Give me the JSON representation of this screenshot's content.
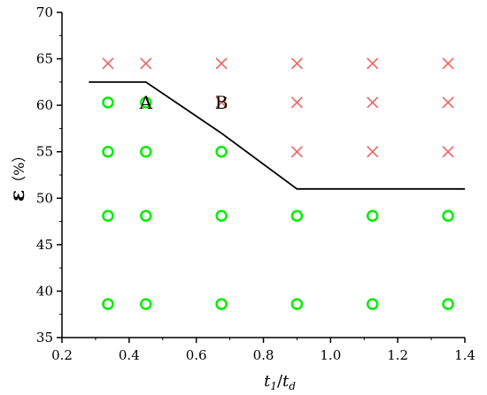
{
  "chart_data": {
    "type": "scatter",
    "xlim": [
      0.2,
      1.4
    ],
    "ylim": [
      35,
      70
    ],
    "x_ticks": [
      "0.2",
      "0.4",
      "0.6",
      "0.8",
      "1.0",
      "1.2",
      "1.4"
    ],
    "x_tick_values": [
      0.2,
      0.4,
      0.6,
      0.8,
      1.0,
      1.2,
      1.4
    ],
    "y_ticks": [
      "35",
      "40",
      "45",
      "50",
      "55",
      "60",
      "65",
      "70"
    ],
    "y_tick_values": [
      35,
      40,
      45,
      50,
      55,
      60,
      65,
      70
    ],
    "xlabel": {
      "t1": "t",
      "t1_sub": "1",
      "slash": "/",
      "t2": "t",
      "t2_sub": "d"
    },
    "ylabel": {
      "symbol": "ε",
      "unit": "（%）"
    },
    "series": [
      {
        "marker": "circle",
        "color": "#00ee00",
        "points": [
          [
            0.337,
            60.3
          ],
          [
            0.45,
            60.3
          ],
          [
            0.337,
            55.0
          ],
          [
            0.45,
            55.0
          ],
          [
            0.675,
            55.0
          ],
          [
            0.337,
            48.1
          ],
          [
            0.45,
            48.1
          ],
          [
            0.675,
            48.1
          ],
          [
            0.9,
            48.1
          ],
          [
            1.125,
            48.1
          ],
          [
            1.35,
            48.1
          ],
          [
            0.337,
            38.6
          ],
          [
            0.45,
            38.6
          ],
          [
            0.675,
            38.6
          ],
          [
            0.9,
            38.6
          ],
          [
            1.125,
            38.6
          ],
          [
            1.35,
            38.6
          ]
        ]
      },
      {
        "marker": "cross",
        "color": "#f06060",
        "points": [
          [
            0.337,
            64.5
          ],
          [
            0.45,
            64.5
          ],
          [
            0.675,
            64.5
          ],
          [
            0.9,
            64.5
          ],
          [
            1.125,
            64.5
          ],
          [
            1.35,
            64.5
          ],
          [
            0.675,
            60.3
          ],
          [
            0.9,
            60.3
          ],
          [
            1.125,
            60.3
          ],
          [
            1.35,
            60.3
          ],
          [
            0.9,
            55.0
          ],
          [
            1.125,
            55.0
          ],
          [
            1.35,
            55.0
          ]
        ]
      },
      {
        "marker": "line",
        "color": "#000000",
        "points": [
          [
            0.28,
            62.5
          ],
          [
            0.45,
            62.5
          ],
          [
            0.675,
            57.0
          ],
          [
            0.9,
            51.0
          ],
          [
            1.4,
            51.0
          ]
        ]
      }
    ],
    "annotations": [
      {
        "text": "A",
        "x": 0.45,
        "y": 60.3
      },
      {
        "text": "B",
        "x": 0.675,
        "y": 60.3
      }
    ]
  }
}
